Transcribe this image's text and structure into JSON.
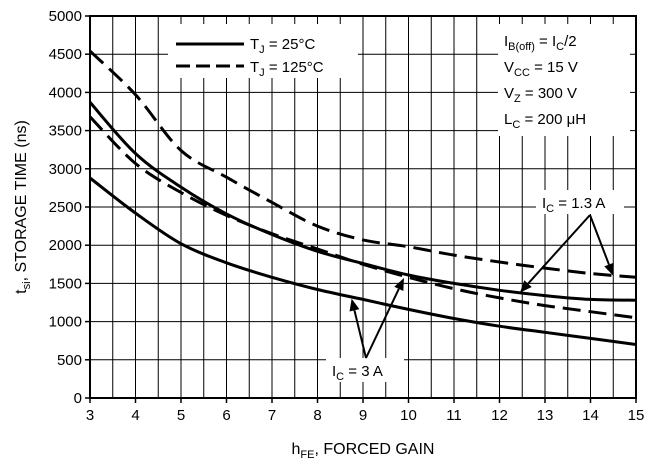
{
  "chart_data": {
    "type": "line",
    "xlabel": "h",
    "xlabel_sub": "FE",
    "xlabel_rest": ", FORCED GAIN",
    "ylabel": "t",
    "ylabel_sub": "si",
    "ylabel_rest": ", STORAGE TIME (ns)",
    "xlim": [
      3,
      15
    ],
    "ylim": [
      0,
      5000
    ],
    "x_ticks": [
      "3",
      "4",
      "5",
      "6",
      "7",
      "8",
      "9",
      "10",
      "11",
      "12",
      "13",
      "14",
      "15"
    ],
    "y_ticks": [
      "0",
      "500",
      "1000",
      "1500",
      "2000",
      "2500",
      "3000",
      "3500",
      "4000",
      "4500",
      "5000"
    ],
    "grid": true,
    "legend": {
      "position": "top-left",
      "entries": [
        {
          "t": "T",
          "sub": "J",
          "rest": " = 25°C",
          "style": "solid"
        },
        {
          "t": "T",
          "sub": "J",
          "rest": " = 125°C",
          "style": "dashed"
        }
      ]
    },
    "conditions": [
      {
        "t": "I",
        "sub": "B(off)",
        "rest": " = I",
        "sub2": "C",
        "rest2": "/2"
      },
      {
        "t": "V",
        "sub": "CC",
        "rest": " = 15 V"
      },
      {
        "t": "V",
        "sub": "Z",
        "rest": " = 300 V"
      },
      {
        "t": "L",
        "sub": "C",
        "rest": " = 200 μH"
      }
    ],
    "annotations": {
      "ic_high": {
        "t": "I",
        "sub": "C",
        "rest": " = 1.3 A"
      },
      "ic_low": {
        "t": "I",
        "sub": "C",
        "rest": " = 3 A"
      }
    },
    "series": [
      {
        "condition": "IC = 3 A, TJ = 25°C",
        "style": "solid",
        "x": [
          3,
          4,
          5,
          6,
          7,
          8,
          9,
          10,
          11,
          12,
          13,
          14,
          15
        ],
        "y": [
          2880,
          2420,
          2020,
          1770,
          1580,
          1420,
          1290,
          1160,
          1040,
          940,
          860,
          780,
          700
        ]
      },
      {
        "condition": "IC = 1.3 A, TJ = 25°C",
        "style": "solid",
        "x": [
          3,
          4,
          5,
          6,
          7,
          8,
          9,
          10,
          11,
          12,
          13,
          14,
          15
        ],
        "y": [
          3870,
          3200,
          2760,
          2410,
          2140,
          1920,
          1760,
          1610,
          1500,
          1410,
          1340,
          1290,
          1280
        ]
      },
      {
        "condition": "IC = 3 A, TJ = 125°C",
        "style": "dashed",
        "x": [
          3,
          4,
          5,
          6,
          7,
          8,
          9,
          10,
          11,
          12,
          13,
          14,
          15
        ],
        "y": [
          3680,
          3070,
          2690,
          2390,
          2150,
          1950,
          1750,
          1580,
          1430,
          1310,
          1210,
          1130,
          1050
        ]
      },
      {
        "condition": "IC = 1.3 A, TJ = 125°C",
        "style": "dashed",
        "x": [
          3,
          4,
          5,
          6,
          7,
          8,
          9,
          10,
          11,
          12,
          13,
          14,
          15
        ],
        "y": [
          4540,
          3970,
          3240,
          2890,
          2560,
          2250,
          2070,
          1980,
          1870,
          1780,
          1700,
          1630,
          1580
        ]
      }
    ]
  }
}
